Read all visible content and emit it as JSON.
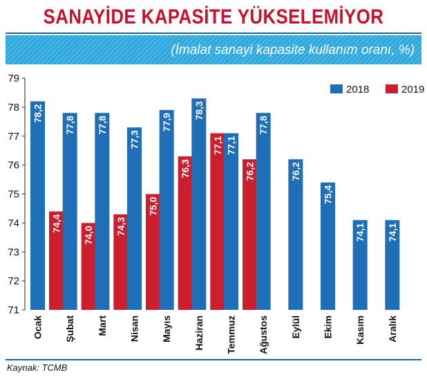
{
  "title": "SANAYİDE KAPASİTE YÜKSELEMİYOR",
  "source": "Kaynak: TCMB",
  "colors": {
    "series_2018": "#1f6fb8",
    "series_2019": "#cc1f2e",
    "title": "#c8102e",
    "band": "#29a7de"
  },
  "chart_data": {
    "type": "bar",
    "subtitle": "(İmalat sanayi kapasite kullanım oranı, %)",
    "categories": [
      "Ocak",
      "Şubat",
      "Mart",
      "Nisan",
      "Mayıs",
      "Haziran",
      "Temmuz",
      "Ağustos",
      "Eylül",
      "Ekim",
      "Kasım",
      "Aralık"
    ],
    "series": [
      {
        "name": "2018",
        "values": [
          78.2,
          77.8,
          77.8,
          77.3,
          77.9,
          78.3,
          77.1,
          77.8,
          76.2,
          75.4,
          74.1,
          74.1
        ],
        "labels": [
          "78,2",
          "77,8",
          "77,8",
          "77,3",
          "77,9",
          "78,3",
          "77,1",
          "77,8",
          "76,2",
          "75,4",
          "74,1",
          "74,1"
        ]
      },
      {
        "name": "2019",
        "values": [
          74.4,
          74.0,
          74.3,
          75.0,
          76.3,
          77.1,
          76.2,
          null,
          null,
          null,
          null,
          null
        ],
        "labels": [
          "74,4",
          "74,0",
          "74,3",
          "75,0",
          "76,3",
          "77,1",
          "76,2",
          "",
          "",
          "",
          "",
          ""
        ]
      }
    ],
    "ylim": [
      71,
      79
    ],
    "yticks": [
      "71",
      "72",
      "73",
      "74",
      "75",
      "76",
      "77",
      "78",
      "79"
    ],
    "grid": false,
    "legend_position": "top-right"
  }
}
